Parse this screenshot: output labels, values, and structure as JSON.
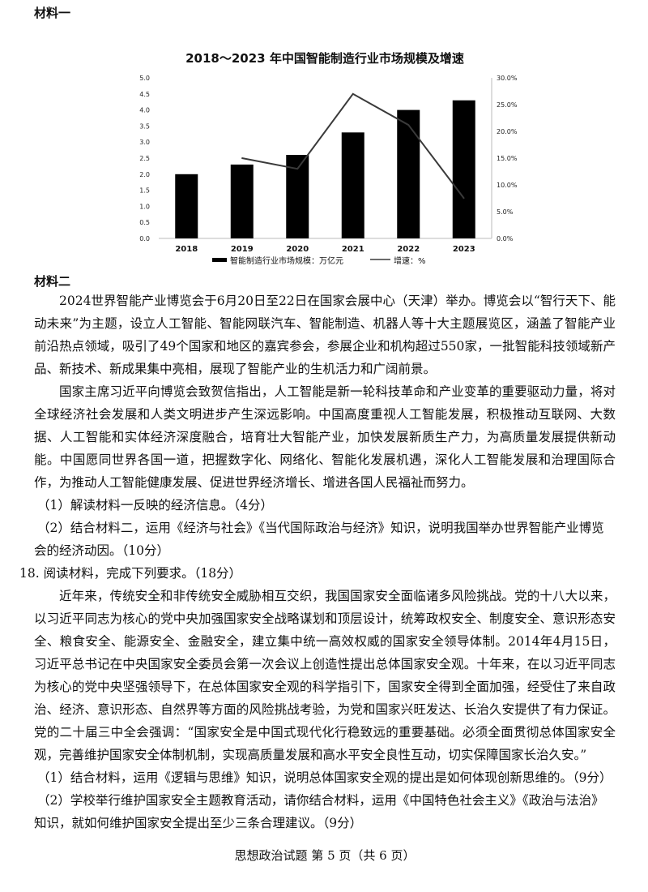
{
  "material1_heading": "材料一",
  "chart_data": {
    "type": "bar+line",
    "title": "2018～2023 年中国智能制造行业市场规模及增速",
    "categories": [
      "2018",
      "2019",
      "2020",
      "2021",
      "2022",
      "2023"
    ],
    "series": [
      {
        "name": "智能制造行业市场规模：万亿元",
        "type": "bar",
        "axis": "left",
        "values": [
          2.0,
          2.3,
          2.6,
          3.3,
          4.0,
          4.3
        ]
      },
      {
        "name": "增速：%",
        "type": "line",
        "axis": "right",
        "values": [
          null,
          15.0,
          13.0,
          27.0,
          21.2,
          7.5
        ]
      }
    ],
    "left_axis": {
      "ylim": [
        0,
        5.0
      ],
      "ticks": [
        "0.0",
        "0.5",
        "1.0",
        "1.5",
        "2.0",
        "2.5",
        "3.0",
        "3.5",
        "4.0",
        "4.5",
        "5.0"
      ]
    },
    "right_axis": {
      "ylim": [
        0,
        30
      ],
      "ticks": [
        "0.0%",
        "5.0%",
        "10.0%",
        "15.0%",
        "20.0%",
        "25.0%",
        "30.0%"
      ]
    },
    "grid": false,
    "legend_position": "bottom",
    "colors": {
      "bar": "#000000",
      "line": "#3a3a3a"
    }
  },
  "material2_heading": "材料二",
  "material2_paragraphs": [
    "2024世界智能产业博览会于6月20日至22日在国家会展中心（天津）举办。博览会以“智行天下、能动未来”为主题，设立人工智能、智能网联汽车、智能制造、机器人等十大主题展览区，涵盖了智能产业前沿热点领域，吸引了49个国家和地区的嘉宾参会，参展企业和机构超过550家，一批智能科技领域新产品、新技术、新成果集中亮相，展现了智能产业的生机活力和广阔前景。",
    "国家主席习近平向博览会致贺信指出，人工智能是新一轮科技革命和产业变革的重要驱动力量，将对全球经济社会发展和人类文明进步产生深远影响。中国高度重视人工智能发展，积极推动互联网、大数据、人工智能和实体经济深度融合，培育壮大智能产业，加快发展新质生产力，为高质量发展提供新动能。中国愿同世界各国一道，把握数字化、网络化、智能化发展机遇，深化人工智能发展和治理国际合作，为推动人工智能健康发展、促进世界经济增长、增进各国人民福祉而努力。"
  ],
  "q17_1": "（1）解读材料一反映的经济信息。（4分）",
  "q17_2": "（2）结合材料二，运用《经济与社会》《当代国际政治与经济》知识，说明我国举办世界智能产业博览会的经济动因。（10分）",
  "q18_heading": "18. 阅读材料，完成下列要求。（18分）",
  "q18_paragraph": "近年来，传统安全和非传统安全威胁相互交织，我国国家安全面临诸多风险挑战。党的十八大以来，以习近平同志为核心的党中央加强国家安全战略谋划和顶层设计，统筹政权安全、制度安全、意识形态安全、粮食安全、能源安全、金融安全，建立集中统一高效权威的国家安全领导体制。2014年4月15日，习近平总书记在中央国家安全委员会第一次会议上创造性提出总体国家安全观。十年来，在以习近平同志为核心的党中央坚强领导下，在总体国家安全观的科学指引下，国家安全得到全面加强，经受住了来自政治、经济、意识形态、自然界等方面的风险挑战考验，为党和国家兴旺发达、长治久安提供了有力保证。党的二十届三中全会强调：“国家安全是中国式现代化行稳致远的重要基础。必须全面贯彻总体国家安全观，完善维护国家安全体制机制，实现高质量发展和高水平安全良性互动，切实保障国家长治久安。”",
  "q18_1": "（1）结合材料，运用《逻辑与思维》知识，说明总体国家安全观的提出是如何体现创新思维的。（9分）",
  "q18_2": "（2）学校举行维护国家安全主题教育活动，请你结合材料，运用《中国特色社会主义》《政治与法治》知识，就如何维护国家安全提出至少三条合理建议。（9分）",
  "footer": "思想政治试题 第 5 页（共 6 页）"
}
